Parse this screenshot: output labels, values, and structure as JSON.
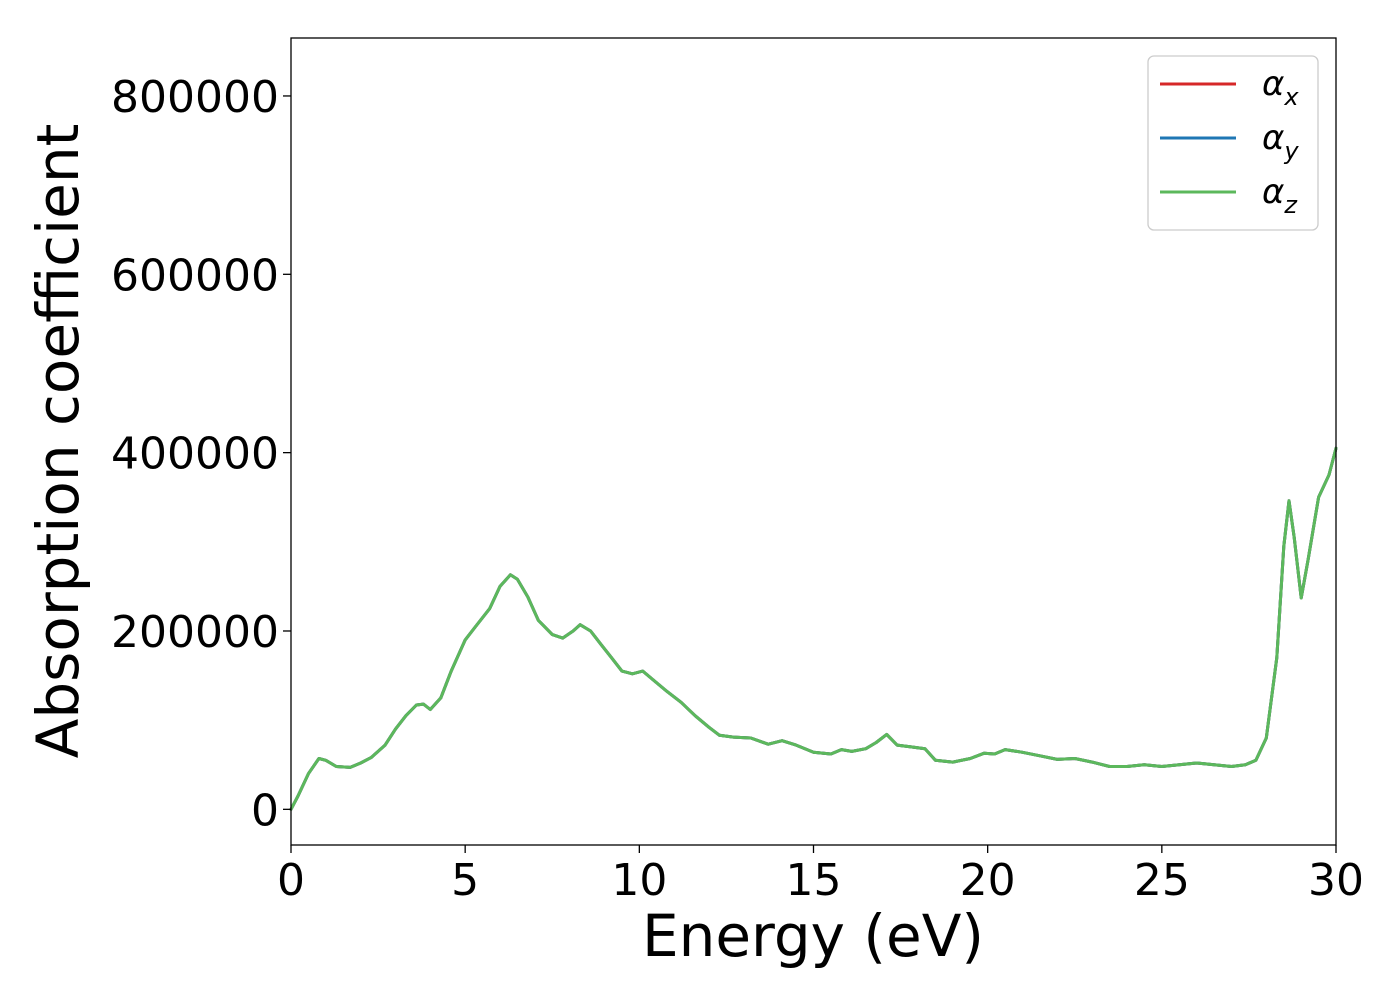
{
  "chart_data": {
    "type": "line",
    "title": "",
    "xlabel": "Energy (eV)",
    "ylabel": "Absorption coefficient",
    "xlim": [
      0,
      30
    ],
    "ylim": [
      -40000,
      865000
    ],
    "xticks": [
      0,
      5,
      10,
      15,
      20,
      25,
      30
    ],
    "yticks": [
      0,
      200000,
      400000,
      600000,
      800000
    ],
    "xtick_labels": [
      "0",
      "5",
      "10",
      "15",
      "20",
      "25",
      "30"
    ],
    "ytick_labels": [
      "0",
      "200000",
      "400000",
      "600000",
      "800000"
    ],
    "grid": false,
    "legend_position": "top-right",
    "x": [
      0,
      0.2,
      0.5,
      0.8,
      1.0,
      1.3,
      1.7,
      2.0,
      2.3,
      2.7,
      3.0,
      3.3,
      3.6,
      3.8,
      4.0,
      4.3,
      4.6,
      5.0,
      5.3,
      5.7,
      6.0,
      6.3,
      6.5,
      6.8,
      7.1,
      7.5,
      7.8,
      8.1,
      8.3,
      8.6,
      8.9,
      9.2,
      9.5,
      9.8,
      10.1,
      10.4,
      10.8,
      11.2,
      11.6,
      12.0,
      12.3,
      12.7,
      13.2,
      13.7,
      14.1,
      14.5,
      15.0,
      15.5,
      15.8,
      16.1,
      16.5,
      16.8,
      17.1,
      17.4,
      17.8,
      18.2,
      18.5,
      19.0,
      19.5,
      19.9,
      20.2,
      20.5,
      21.0,
      21.5,
      22.0,
      22.5,
      23.0,
      23.5,
      24.0,
      24.5,
      25.0,
      25.5,
      26.0,
      26.5,
      27.0,
      27.4,
      27.7,
      28.0,
      28.3,
      28.5,
      28.65,
      28.8,
      29.0,
      29.2,
      29.5,
      29.8,
      30.0
    ],
    "series": [
      {
        "name": "α_x",
        "label_main": "α",
        "label_sub": "x",
        "color": "#d62728",
        "values": [
          0,
          15000,
          40000,
          57000,
          55000,
          48000,
          47000,
          52000,
          58000,
          72000,
          90000,
          105000,
          117000,
          118000,
          112000,
          125000,
          155000,
          190000,
          205000,
          225000,
          250000,
          263000,
          258000,
          238000,
          212000,
          196000,
          192000,
          200000,
          207000,
          200000,
          185000,
          170000,
          155000,
          152000,
          155000,
          145000,
          132000,
          120000,
          105000,
          92000,
          83000,
          81000,
          80000,
          73000,
          77000,
          72000,
          64000,
          62000,
          67000,
          65000,
          68000,
          75000,
          84000,
          72000,
          70000,
          68000,
          55000,
          53000,
          57000,
          63000,
          62000,
          67000,
          64000,
          60000,
          56000,
          57000,
          53000,
          48000,
          48000,
          50000,
          48000,
          50000,
          52000,
          50000,
          48000,
          50000,
          55000,
          80000,
          170000,
          295000,
          346000,
          305000,
          237000,
          280000,
          350000,
          375000,
          405000
        ]
      },
      {
        "name": "α_y",
        "label_main": "α",
        "label_sub": "y",
        "color": "#1f77b4",
        "values": [
          0,
          15000,
          40000,
          57000,
          55000,
          48000,
          47000,
          52000,
          58000,
          72000,
          90000,
          105000,
          117000,
          118000,
          112000,
          125000,
          155000,
          190000,
          205000,
          225000,
          250000,
          263000,
          258000,
          238000,
          212000,
          196000,
          192000,
          200000,
          207000,
          200000,
          185000,
          170000,
          155000,
          152000,
          155000,
          145000,
          132000,
          120000,
          105000,
          92000,
          83000,
          81000,
          80000,
          73000,
          77000,
          72000,
          64000,
          62000,
          67000,
          65000,
          68000,
          75000,
          84000,
          72000,
          70000,
          68000,
          55000,
          53000,
          57000,
          63000,
          62000,
          67000,
          64000,
          60000,
          56000,
          57000,
          53000,
          48000,
          48000,
          50000,
          48000,
          50000,
          52000,
          50000,
          48000,
          50000,
          55000,
          80000,
          170000,
          295000,
          346000,
          305000,
          237000,
          280000,
          350000,
          375000,
          405000
        ]
      },
      {
        "name": "α_z",
        "label_main": "α",
        "label_sub": "z",
        "color": "#5cb85c",
        "values": [
          0,
          15000,
          40000,
          57000,
          55000,
          48000,
          47000,
          52000,
          58000,
          72000,
          90000,
          105000,
          117000,
          118000,
          112000,
          125000,
          155000,
          190000,
          205000,
          225000,
          250000,
          263000,
          258000,
          238000,
          212000,
          196000,
          192000,
          200000,
          207000,
          200000,
          185000,
          170000,
          155000,
          152000,
          155000,
          145000,
          132000,
          120000,
          105000,
          92000,
          83000,
          81000,
          80000,
          73000,
          77000,
          72000,
          64000,
          62000,
          67000,
          65000,
          68000,
          75000,
          84000,
          72000,
          70000,
          68000,
          55000,
          53000,
          57000,
          63000,
          62000,
          67000,
          64000,
          60000,
          56000,
          57000,
          53000,
          48000,
          48000,
          50000,
          48000,
          50000,
          52000,
          50000,
          48000,
          50000,
          55000,
          80000,
          170000,
          295000,
          346000,
          305000,
          237000,
          280000,
          350000,
          375000,
          405000
        ]
      }
    ]
  }
}
